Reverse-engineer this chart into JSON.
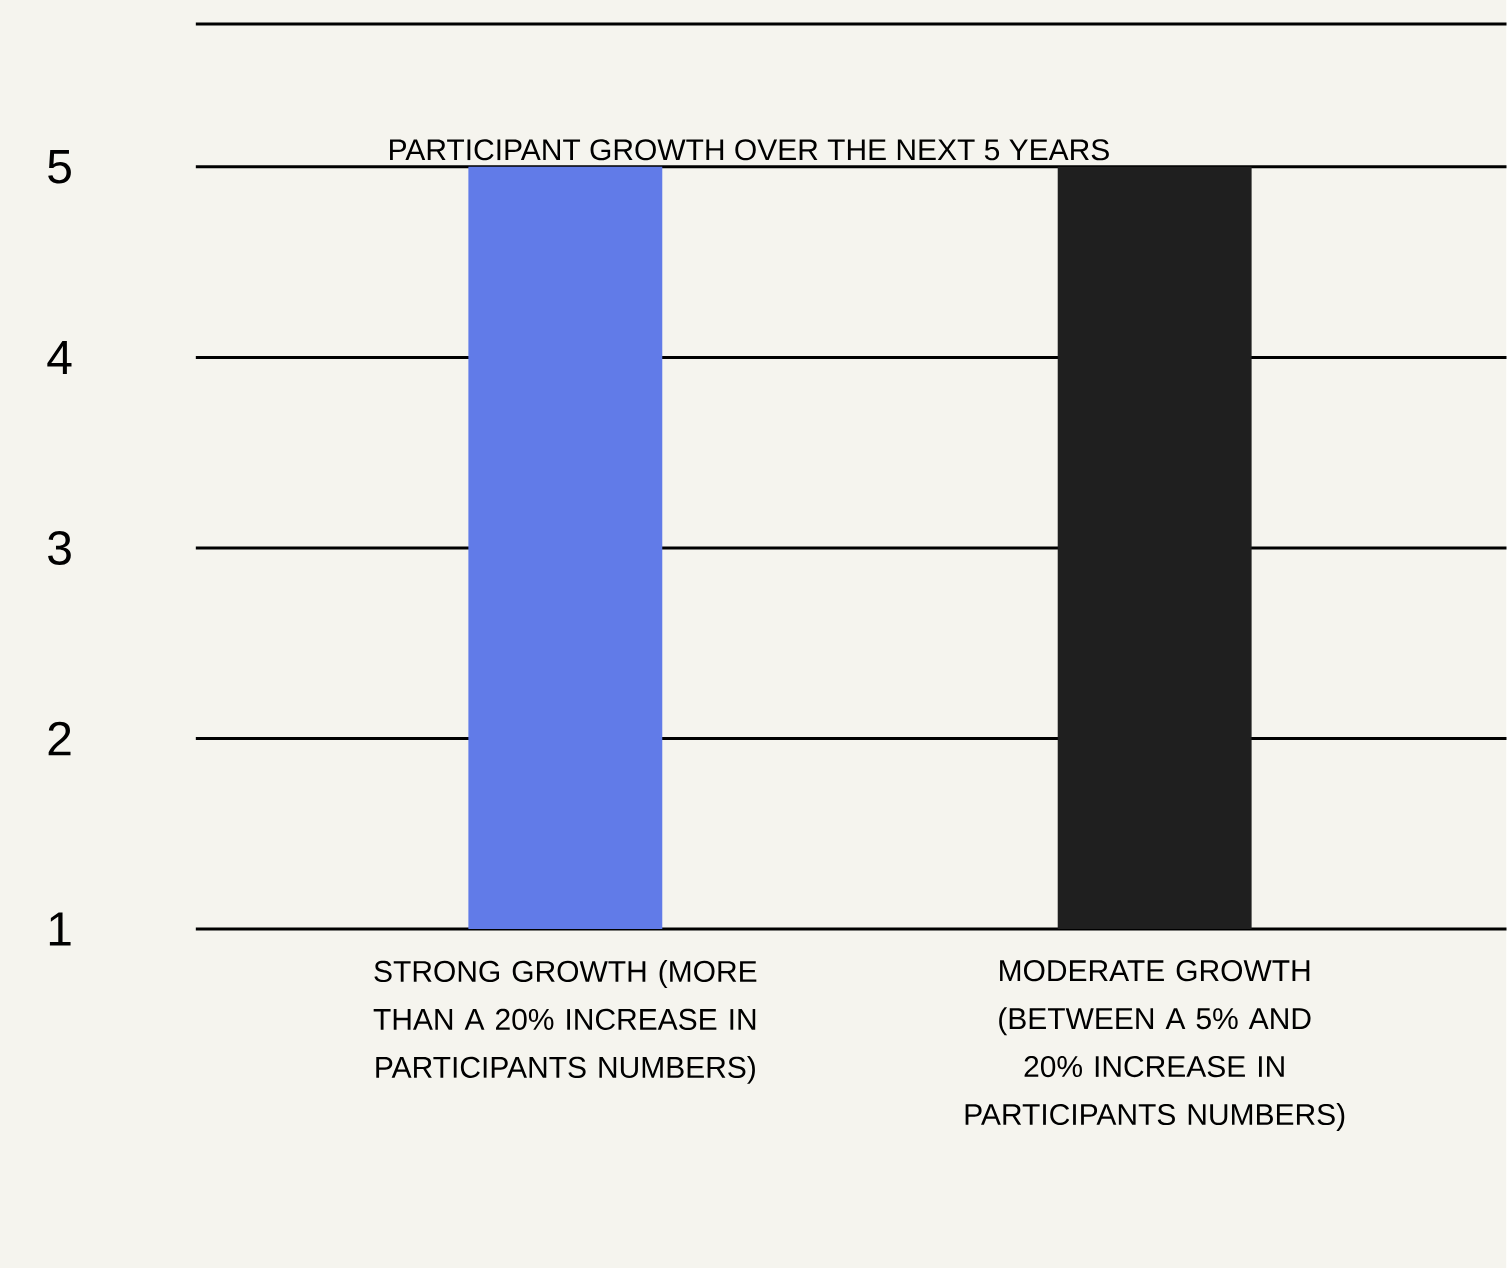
{
  "chart_data": {
    "type": "bar",
    "title": "PARTICIPANT GROWTH OVER THE NEXT 5 YEARS",
    "categories": [
      "STRONG GROWTH (MORE THAN A 20% INCREASE IN PARTICIPANTS NUMBERS)",
      "MODERATE GROWTH (BETWEEN A 5% AND 20% INCREASE IN PARTICIPANTS NUMBERS)"
    ],
    "values": [
      5,
      5
    ],
    "colors": [
      "#617be8",
      "#1f1f1f"
    ],
    "ylim": [
      1,
      5.75
    ],
    "yticks": [
      1,
      2,
      3,
      4,
      5
    ],
    "grid": "y"
  }
}
